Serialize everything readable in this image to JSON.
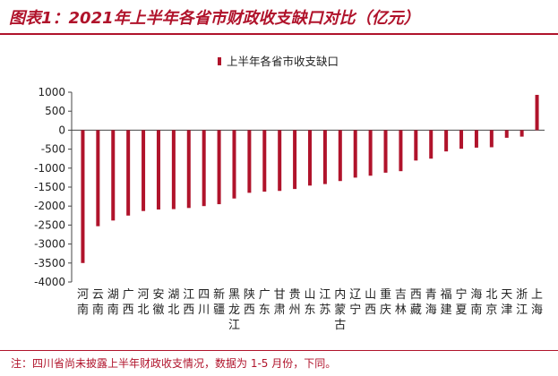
{
  "header": {
    "title": "图表1：2021年上半年各省市财政收支缺口对比（亿元）"
  },
  "colors": {
    "accent": "#b0132b",
    "bar": "#b0132b"
  },
  "chart_data": {
    "type": "bar",
    "title": "图表1：2021年上半年各省市财政收支缺口对比（亿元）",
    "xlabel": "",
    "ylabel": "",
    "legend": {
      "position": "top-center",
      "entries": [
        "上半年各省市收支缺口"
      ]
    },
    "grid": false,
    "ylim": [
      -4000,
      1000
    ],
    "yticks": [
      1000,
      500,
      0,
      -500,
      -1000,
      -1500,
      -2000,
      -2500,
      -3000,
      -3500,
      -4000
    ],
    "categories": [
      "河南",
      "云南",
      "湖南",
      "广西",
      "河北",
      "安徽",
      "湖北",
      "江西",
      "四川",
      "新疆",
      "黑龙江",
      "陕西",
      "广东",
      "甘肃",
      "贵州",
      "山东",
      "江苏",
      "内蒙古",
      "辽宁",
      "山西",
      "重庆",
      "吉林",
      "西藏",
      "青海",
      "福建",
      "宁夏",
      "海南",
      "北京",
      "天津",
      "浙江",
      "上海"
    ],
    "series": [
      {
        "name": "上半年各省市收支缺口",
        "values": [
          -3500,
          -2530,
          -2380,
          -2250,
          -2130,
          -2090,
          -2080,
          -2050,
          -2000,
          -1950,
          -1800,
          -1650,
          -1620,
          -1600,
          -1550,
          -1460,
          -1420,
          -1340,
          -1250,
          -1200,
          -1120,
          -1080,
          -800,
          -750,
          -560,
          -490,
          -460,
          -450,
          -200,
          -170,
          930
        ]
      }
    ]
  },
  "footer": {
    "note": "注：四川省尚未披露上半年财政收支情况，数据为 1-5 月份，下同。"
  }
}
